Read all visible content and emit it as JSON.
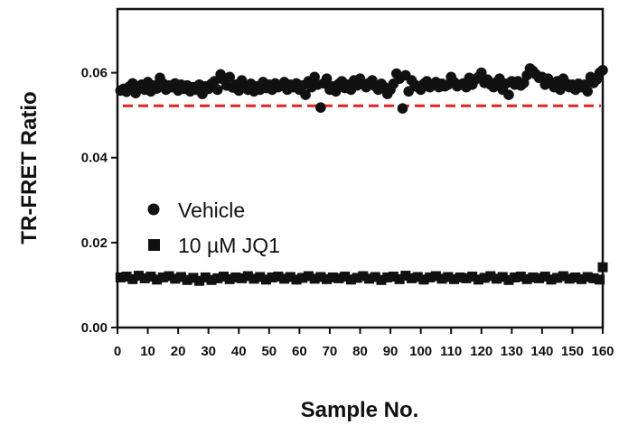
{
  "chart_data": {
    "type": "scatter",
    "title": "",
    "xlabel": "Sample No.",
    "ylabel": "TR-FRET Ratio",
    "xlim": [
      0,
      160
    ],
    "ylim": [
      0,
      0.075
    ],
    "xticks": [
      0,
      10,
      20,
      30,
      40,
      50,
      60,
      70,
      80,
      90,
      100,
      110,
      120,
      130,
      140,
      150,
      160
    ],
    "yticks": [
      0.0,
      0.02,
      0.04,
      0.06
    ],
    "ytick_labels": [
      "0.00",
      "0.02",
      "0.04",
      "0.06"
    ],
    "grid": false,
    "legend_position": "center-left",
    "series": [
      {
        "name": "Vehicle",
        "marker": "circle",
        "color": "#111111",
        "x": [
          1,
          2,
          3,
          4,
          5,
          6,
          7,
          8,
          9,
          10,
          11,
          12,
          13,
          14,
          15,
          16,
          17,
          18,
          19,
          20,
          21,
          22,
          23,
          24,
          25,
          26,
          27,
          28,
          29,
          30,
          31,
          32,
          33,
          34,
          35,
          36,
          37,
          38,
          39,
          40,
          41,
          42,
          43,
          44,
          45,
          46,
          47,
          48,
          49,
          50,
          51,
          52,
          53,
          54,
          55,
          56,
          57,
          58,
          59,
          60,
          61,
          62,
          63,
          64,
          65,
          66,
          67,
          68,
          69,
          70,
          71,
          72,
          73,
          74,
          75,
          76,
          77,
          78,
          79,
          80,
          81,
          82,
          83,
          84,
          85,
          86,
          87,
          88,
          89,
          90,
          91,
          92,
          93,
          94,
          95,
          96,
          97,
          98,
          99,
          100,
          101,
          102,
          103,
          104,
          105,
          106,
          107,
          108,
          109,
          110,
          111,
          112,
          113,
          114,
          115,
          116,
          117,
          118,
          119,
          120,
          121,
          122,
          123,
          124,
          125,
          126,
          127,
          128,
          129,
          130,
          131,
          132,
          133,
          134,
          135,
          136,
          137,
          138,
          139,
          140,
          141,
          142,
          143,
          144,
          145,
          146,
          147,
          148,
          149,
          150,
          151,
          152,
          153,
          154,
          155,
          156,
          157,
          158,
          159,
          160
        ],
        "y": [
          0.0558,
          0.0562,
          0.0555,
          0.0568,
          0.0575,
          0.0552,
          0.0565,
          0.0572,
          0.056,
          0.0578,
          0.0556,
          0.057,
          0.0563,
          0.0588,
          0.0575,
          0.056,
          0.057,
          0.0566,
          0.0575,
          0.0558,
          0.0572,
          0.0562,
          0.057,
          0.0556,
          0.0566,
          0.056,
          0.0572,
          0.055,
          0.0568,
          0.0562,
          0.0574,
          0.058,
          0.056,
          0.0596,
          0.0584,
          0.057,
          0.059,
          0.0565,
          0.0572,
          0.0558,
          0.0582,
          0.0566,
          0.056,
          0.0574,
          0.0556,
          0.0568,
          0.056,
          0.0578,
          0.0564,
          0.0572,
          0.056,
          0.0575,
          0.0566,
          0.057,
          0.0578,
          0.056,
          0.0572,
          0.0566,
          0.0575,
          0.056,
          0.057,
          0.0548,
          0.058,
          0.0566,
          0.059,
          0.0572,
          0.0518,
          0.0575,
          0.0586,
          0.056,
          0.0568,
          0.0556,
          0.0574,
          0.058,
          0.0564,
          0.0572,
          0.056,
          0.0582,
          0.057,
          0.0586,
          0.0574,
          0.0566,
          0.0576,
          0.0582,
          0.0568,
          0.056,
          0.0574,
          0.0566,
          0.055,
          0.056,
          0.0574,
          0.0598,
          0.0586,
          0.0516,
          0.0594,
          0.0556,
          0.0582,
          0.0572,
          0.0566,
          0.056,
          0.0574,
          0.058,
          0.0566,
          0.0572,
          0.0578,
          0.0566,
          0.0574,
          0.0568,
          0.0572,
          0.059,
          0.0578,
          0.0568,
          0.0572,
          0.0575,
          0.0566,
          0.0588,
          0.0572,
          0.0584,
          0.059,
          0.06,
          0.0576,
          0.0584,
          0.0572,
          0.0566,
          0.0578,
          0.0586,
          0.056,
          0.0574,
          0.0548,
          0.058,
          0.0572,
          0.058,
          0.057,
          0.0576,
          0.0594,
          0.061,
          0.0604,
          0.0596,
          0.0588,
          0.059,
          0.0572,
          0.0586,
          0.0576,
          0.0566,
          0.058,
          0.056,
          0.0586,
          0.0575,
          0.0566,
          0.0572,
          0.056,
          0.0574,
          0.0566,
          0.0572,
          0.0556,
          0.059,
          0.0576,
          0.0584,
          0.06,
          0.0606
        ]
      },
      {
        "name": "10 µM JQ1",
        "marker": "square",
        "color": "#111111",
        "x": [
          1,
          3,
          5,
          7,
          9,
          11,
          13,
          15,
          17,
          19,
          21,
          23,
          25,
          27,
          29,
          31,
          33,
          35,
          37,
          39,
          41,
          43,
          45,
          47,
          49,
          51,
          53,
          55,
          57,
          59,
          61,
          63,
          65,
          67,
          69,
          71,
          73,
          75,
          77,
          79,
          81,
          83,
          85,
          87,
          89,
          91,
          93,
          95,
          97,
          99,
          101,
          103,
          105,
          107,
          109,
          111,
          113,
          115,
          117,
          119,
          121,
          123,
          125,
          127,
          129,
          131,
          133,
          135,
          137,
          139,
          141,
          143,
          145,
          147,
          149,
          151,
          153,
          155,
          157,
          159,
          160
        ],
        "y": [
          0.0118,
          0.012,
          0.0114,
          0.0122,
          0.0116,
          0.012,
          0.0113,
          0.0118,
          0.0121,
          0.0115,
          0.0119,
          0.0112,
          0.0117,
          0.011,
          0.0118,
          0.0112,
          0.0116,
          0.012,
          0.0114,
          0.0118,
          0.0116,
          0.0121,
          0.0115,
          0.0119,
          0.0113,
          0.0118,
          0.012,
          0.0115,
          0.0119,
          0.0113,
          0.0117,
          0.0121,
          0.0115,
          0.0119,
          0.0114,
          0.0118,
          0.0116,
          0.012,
          0.0113,
          0.0117,
          0.0121,
          0.0115,
          0.0119,
          0.0112,
          0.0118,
          0.012,
          0.0114,
          0.0122,
          0.0116,
          0.0119,
          0.0113,
          0.0118,
          0.0121,
          0.0115,
          0.0119,
          0.0114,
          0.0118,
          0.0116,
          0.012,
          0.0113,
          0.0117,
          0.0121,
          0.0115,
          0.0119,
          0.0112,
          0.0118,
          0.012,
          0.0114,
          0.0118,
          0.0116,
          0.012,
          0.0113,
          0.0117,
          0.0121,
          0.0115,
          0.0118,
          0.0114,
          0.0119,
          0.0116,
          0.0113,
          0.0142
        ]
      }
    ],
    "reference_lines": [
      {
        "y": 0.0522,
        "color": "#e02424",
        "style": "dashed"
      },
      {
        "y": 0.0118,
        "color": "#e02424",
        "style": "dashed"
      }
    ]
  }
}
